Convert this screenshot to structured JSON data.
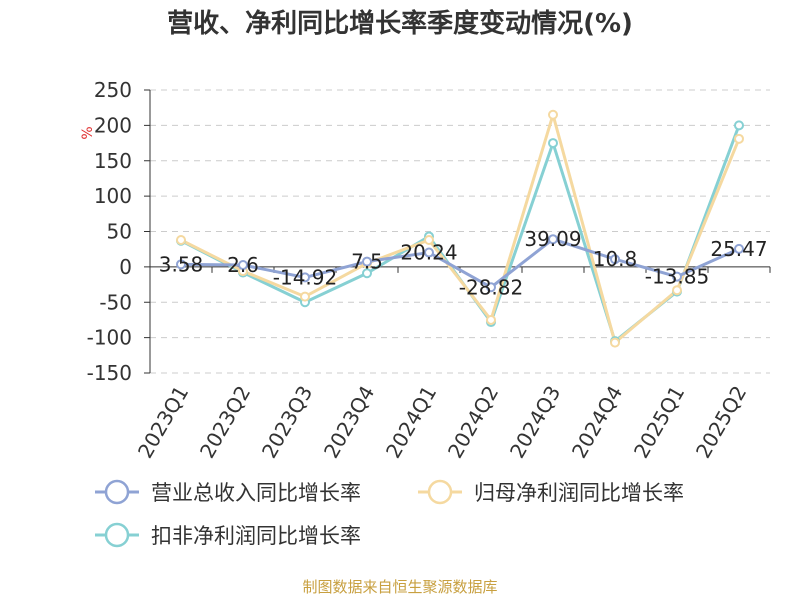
{
  "title": "营收、净利同比增长率季度变动情况(%)",
  "source": "制图数据来自恒生聚源数据库",
  "chart_data": {
    "type": "line",
    "unit": "%",
    "categories": [
      "2023Q1",
      "2023Q2",
      "2023Q3",
      "2023Q4",
      "2024Q1",
      "2024Q2",
      "2024Q3",
      "2024Q4",
      "2025Q1",
      "2025Q2"
    ],
    "ylim": [
      -150,
      250
    ],
    "yticks": [
      250,
      200,
      150,
      100,
      50,
      0,
      -50,
      -100,
      -150
    ],
    "grid": true,
    "legend_position": "bottom",
    "series": [
      {
        "name": "营业总收入同比增长率",
        "color": "#8fa3d4",
        "values": [
          3.58,
          2.6,
          -14.92,
          7.5,
          20.24,
          -28.82,
          39.09,
          10.8,
          -13.85,
          25.47
        ],
        "labels": [
          "3.58",
          "2.6",
          "-14.92",
          "7.5",
          "20.24",
          "-28.82",
          "39.09",
          "10.8",
          "-13.85",
          "25.47"
        ]
      },
      {
        "name": "归母净利润同比增长率",
        "color": "#f5d9a0",
        "values": [
          38,
          -6,
          -42,
          5,
          38,
          -75,
          215,
          -107,
          -33,
          181
        ]
      },
      {
        "name": "扣非净利润同比增长率",
        "color": "#86d0d3",
        "values": [
          37,
          -8,
          -50,
          -9,
          43,
          -78,
          175,
          -105,
          -35,
          200
        ]
      }
    ]
  }
}
